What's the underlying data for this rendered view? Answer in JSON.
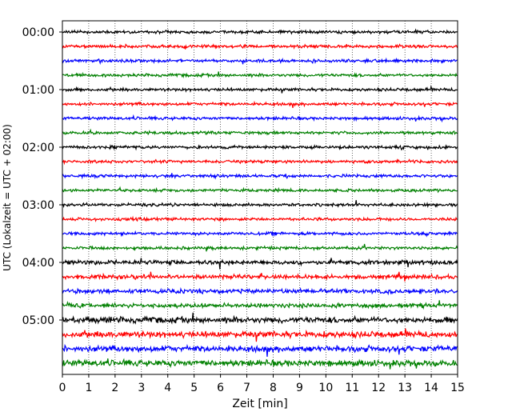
{
  "chart_data": {
    "type": "line",
    "title": "",
    "xlabel": "Zeit  [min]",
    "ylabel": "UTC (Lokalzeit = UTC + 02:00)",
    "xlim": [
      0,
      15
    ],
    "x_ticks": [
      "0",
      "1",
      "2",
      "3",
      "4",
      "5",
      "6",
      "7",
      "8",
      "9",
      "10",
      "11",
      "12",
      "13",
      "14",
      "15"
    ],
    "y_tick_labels": [
      "00:00",
      "01:00",
      "02:00",
      "03:00",
      "04:00",
      "05:00"
    ],
    "grid": "vertical dotted lines at each minute",
    "legend": "none",
    "colors": [
      "#000000",
      "#ff0000",
      "#0000ff",
      "#008000"
    ],
    "trace_interval_min": 15,
    "num_traces": 24,
    "traces_start": "00:00",
    "traces_end": "05:45",
    "series": [
      {
        "start": "00:00",
        "color": "#000000"
      },
      {
        "start": "00:15",
        "color": "#ff0000"
      },
      {
        "start": "00:30",
        "color": "#0000ff"
      },
      {
        "start": "00:45",
        "color": "#008000"
      },
      {
        "start": "01:00",
        "color": "#000000"
      },
      {
        "start": "01:15",
        "color": "#ff0000"
      },
      {
        "start": "01:30",
        "color": "#0000ff"
      },
      {
        "start": "01:45",
        "color": "#008000"
      },
      {
        "start": "02:00",
        "color": "#000000"
      },
      {
        "start": "02:15",
        "color": "#ff0000"
      },
      {
        "start": "02:30",
        "color": "#0000ff"
      },
      {
        "start": "02:45",
        "color": "#008000"
      },
      {
        "start": "03:00",
        "color": "#000000"
      },
      {
        "start": "03:15",
        "color": "#ff0000"
      },
      {
        "start": "03:30",
        "color": "#0000ff"
      },
      {
        "start": "03:45",
        "color": "#008000"
      },
      {
        "start": "04:00",
        "color": "#000000"
      },
      {
        "start": "04:15",
        "color": "#ff0000"
      },
      {
        "start": "04:30",
        "color": "#0000ff"
      },
      {
        "start": "04:45",
        "color": "#008000"
      },
      {
        "start": "05:00",
        "color": "#000000"
      },
      {
        "start": "05:15",
        "color": "#ff0000"
      },
      {
        "start": "05:30",
        "color": "#0000ff"
      },
      {
        "start": "05:45",
        "color": "#008000"
      }
    ]
  }
}
